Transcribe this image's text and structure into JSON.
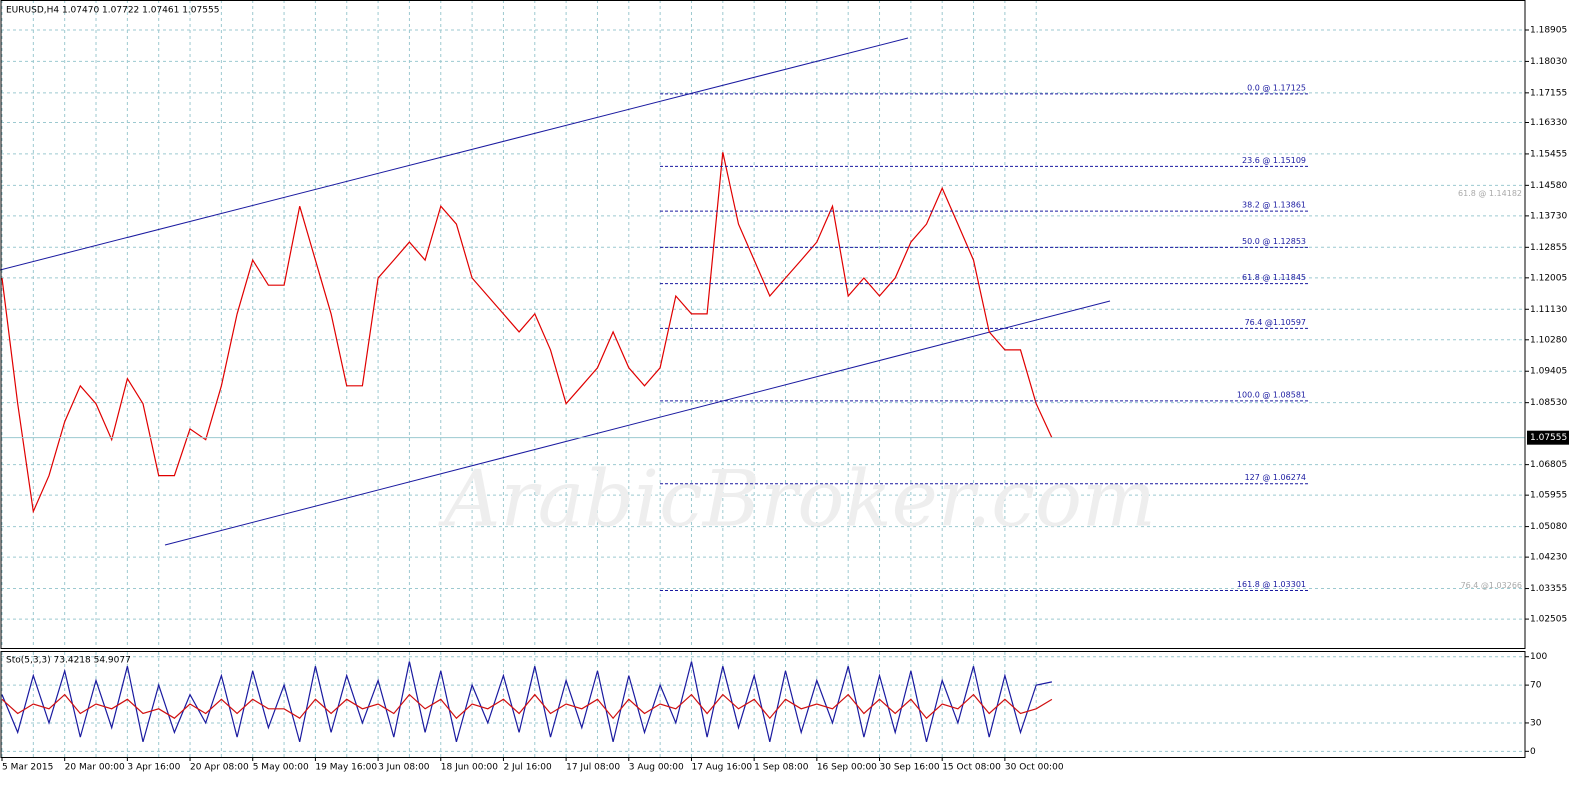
{
  "chart_data": [
    {
      "type": "line",
      "title": "EURUSD,H4 1.07470 1.07722 1.07461 1.07555",
      "watermark": "ArabicBroker.com",
      "categories": [
        "5 Mar 2015",
        null,
        null,
        null,
        "20 Mar 00:00",
        null,
        null,
        null,
        "3 Apr 16:00",
        null,
        null,
        null,
        "20 Apr 08:00",
        null,
        null,
        null,
        "5 May 00:00",
        null,
        null,
        null,
        "19 May 16:00",
        null,
        null,
        null,
        "3 Jun 08:00",
        null,
        null,
        null,
        "18 Jun 00:00",
        null,
        null,
        null,
        "2 Jul 16:00",
        null,
        null,
        null,
        "17 Jul 08:00",
        null,
        null,
        null,
        "3 Aug 00:00",
        null,
        null,
        null,
        "17 Aug 16:00",
        null,
        null,
        null,
        "1 Sep 08:00",
        null,
        null,
        null,
        "16 Sep 00:00",
        null,
        null,
        null,
        "30 Sep 16:00",
        null,
        null,
        null,
        "15 Oct 08:00",
        null,
        null,
        null,
        "30 Oct 00:00",
        null,
        null,
        null
      ],
      "series": [
        {
          "color": "#e00000",
          "values": [
            1.12,
            1.085,
            1.055,
            1.065,
            1.08,
            1.09,
            1.085,
            1.075,
            1.092,
            1.085,
            1.065,
            1.065,
            1.078,
            1.075,
            1.09,
            1.11,
            1.125,
            1.118,
            1.118,
            1.14,
            1.125,
            1.11,
            1.09,
            1.09,
            1.12,
            1.125,
            1.13,
            1.125,
            1.14,
            1.135,
            1.12,
            1.115,
            1.11,
            1.105,
            1.11,
            1.1,
            1.085,
            1.09,
            1.095,
            1.105,
            1.095,
            1.09,
            1.095,
            1.115,
            1.11,
            1.11,
            1.155,
            1.135,
            1.125,
            1.115,
            1.12,
            1.125,
            1.13,
            1.14,
            1.115,
            1.12,
            1.115,
            1.12,
            1.13,
            1.135,
            1.145,
            1.135,
            1.125,
            1.105,
            1.1,
            1.1,
            1.085,
            1.07555
          ]
        }
      ],
      "ylim": [
        1.017,
        1.1974
      ],
      "yticks": [
        {
          "value": 1.18905,
          "label": "1.18905"
        },
        {
          "value": 1.1803,
          "label": "1.18030"
        },
        {
          "value": 1.17155,
          "label": "1.17155"
        },
        {
          "value": 1.1633,
          "label": "1.16330"
        },
        {
          "value": 1.15455,
          "label": "1.15455"
        },
        {
          "value": 1.1458,
          "label": "1.14580"
        },
        {
          "value": 1.1373,
          "label": "1.13730"
        },
        {
          "value": 1.12855,
          "label": "1.12855"
        },
        {
          "value": 1.12005,
          "label": "1.12005"
        },
        {
          "value": 1.1113,
          "label": "1.11130"
        },
        {
          "value": 1.1028,
          "label": "1.10280"
        },
        {
          "value": 1.09405,
          "label": "1.09405"
        },
        {
          "value": 1.0853,
          "label": "1.08530"
        },
        {
          "value": 1.06805,
          "label": "1.06805"
        },
        {
          "value": 1.05955,
          "label": "1.05955"
        },
        {
          "value": 1.0508,
          "label": "1.05080"
        },
        {
          "value": 1.0423,
          "label": "1.04230"
        },
        {
          "value": 1.03355,
          "label": "1.03355"
        },
        {
          "value": 1.02505,
          "label": "1.02505"
        }
      ],
      "grid": true,
      "current_price": 1.07555,
      "fib_levels": [
        {
          "label": "0.0 @ 1.17125",
          "value": 1.17125
        },
        {
          "label": "23.6 @ 1.15109",
          "value": 1.15109
        },
        {
          "label": "38.2 @ 1.13861",
          "value": 1.13861
        },
        {
          "label": "50.0 @ 1.12853",
          "value": 1.12853
        },
        {
          "label": "61.8 @ 1.11845",
          "value": 1.11845
        },
        {
          "label": "76.4 @1.10597",
          "value": 1.10597
        },
        {
          "label": "100.0 @ 1.08581",
          "value": 1.08581
        },
        {
          "label": "127 @ 1.06274",
          "value": 1.06274
        },
        {
          "label": "161.8 @ 1.03301",
          "value": 1.03301
        }
      ],
      "fib_ghost_levels": [
        {
          "label": "61.8 @ 1.14182",
          "value": 1.14182
        },
        {
          "label": "76.4 @1.03266",
          "value": 1.03266
        }
      ]
    },
    {
      "type": "line",
      "title": "Sto(5,3,3) 73.4218 54.9077",
      "series": [
        {
          "color": "#1a1aa0",
          "values": [
            60,
            20,
            80,
            30,
            85,
            15,
            75,
            25,
            90,
            10,
            70,
            20,
            60,
            30,
            80,
            15,
            85,
            25,
            70,
            10,
            90,
            20,
            80,
            30,
            75,
            15,
            95,
            20,
            85,
            10,
            70,
            30,
            80,
            20,
            90,
            15,
            75,
            25,
            85,
            10,
            80,
            20,
            70,
            30,
            95,
            15,
            90,
            25,
            80,
            10,
            85,
            20,
            75,
            30,
            90,
            15,
            80,
            20,
            85,
            10,
            75,
            30,
            90,
            15,
            80,
            20,
            70,
            73.4218
          ]
        },
        {
          "color": "#d01010",
          "values": [
            55,
            40,
            50,
            45,
            60,
            40,
            50,
            45,
            55,
            40,
            45,
            35,
            50,
            40,
            55,
            40,
            55,
            45,
            45,
            35,
            55,
            40,
            55,
            45,
            50,
            40,
            60,
            45,
            55,
            35,
            50,
            45,
            55,
            40,
            60,
            40,
            50,
            45,
            55,
            35,
            55,
            40,
            50,
            45,
            60,
            40,
            60,
            45,
            55,
            35,
            55,
            45,
            50,
            45,
            60,
            40,
            55,
            40,
            55,
            35,
            50,
            45,
            60,
            40,
            55,
            40,
            45,
            54.9077
          ]
        }
      ],
      "ylim": [
        -6,
        105
      ],
      "yticks": [
        100,
        70,
        30,
        0
      ],
      "grid": true
    }
  ]
}
